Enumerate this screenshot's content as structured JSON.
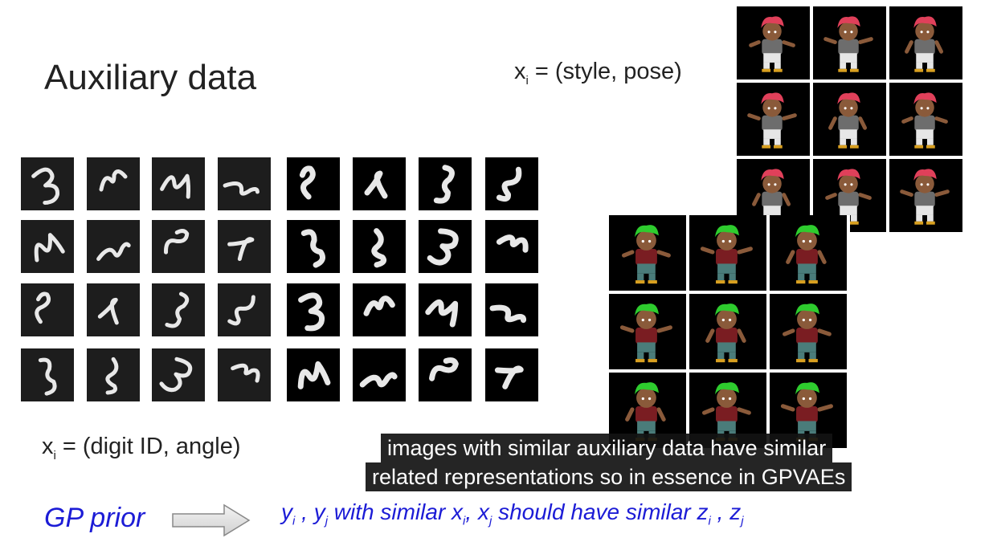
{
  "slide": {
    "title": "Auxiliary data",
    "sprite_label": {
      "var": "x",
      "sub": "i",
      "rest": " = (style, pose)"
    },
    "digit_label": {
      "var": "x",
      "sub": "i",
      "rest": " = (digit ID, angle)"
    },
    "caption": {
      "line1": "images with similar auxiliary data have similar",
      "line2": "related representations so in essence in GPVAEs"
    },
    "gp_prior": {
      "label": "GP prior",
      "y": "y",
      "i": "i",
      "comma1": " , ",
      "yj": "y",
      "j": "j",
      "mid": " with similar ",
      "x1": "x",
      "comma2": ", ",
      "x2": "x",
      "mid2": " should have similar ",
      "z1": "z",
      "comma3": " , ",
      "z2": "z"
    }
  },
  "digits": {
    "rows": 4,
    "cols": 8,
    "left_block": "3,5,4,3 rotated",
    "right_block": "3,5,4,3 rotated"
  },
  "sprites": {
    "red_hair_grid": {
      "rows": 3,
      "cols": 3,
      "hair_color": "#e0405a"
    },
    "green_hair_grid": {
      "rows": 3,
      "cols": 3,
      "hair_color": "#2ecc2e"
    }
  },
  "colors": {
    "accent_blue": "#1c1cd6",
    "caption_bg": "#121212"
  }
}
